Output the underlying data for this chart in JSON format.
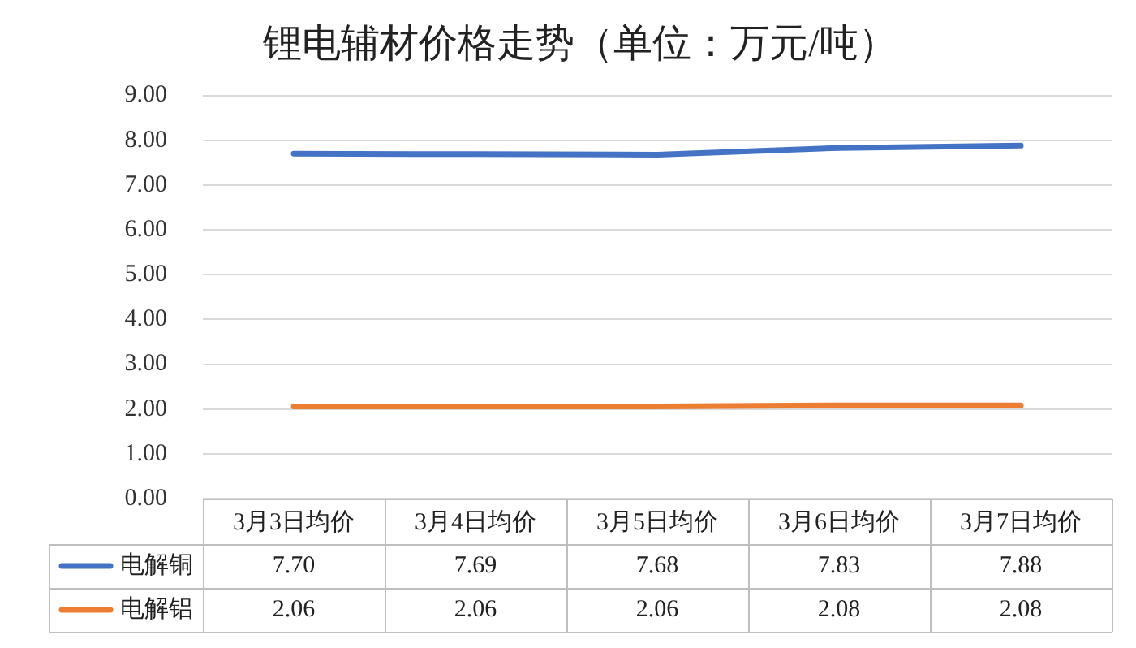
{
  "chart_data": {
    "type": "line",
    "title": "锂电辅材价格走势（单位：万元/吨）",
    "categories": [
      "3月3日均价",
      "3月4日均价",
      "3月5日均价",
      "3月6日均价",
      "3月7日均价"
    ],
    "series": [
      {
        "name": "电解铜",
        "color": "#4472c4",
        "values": [
          7.7,
          7.69,
          7.68,
          7.83,
          7.88
        ],
        "value_labels": [
          "7.70",
          "7.69",
          "7.68",
          "7.83",
          "7.88"
        ]
      },
      {
        "name": "电解铝",
        "color": "#ed7d31",
        "values": [
          2.06,
          2.06,
          2.06,
          2.08,
          2.08
        ],
        "value_labels": [
          "2.06",
          "2.06",
          "2.06",
          "2.08",
          "2.08"
        ]
      }
    ],
    "ylim": [
      0,
      9
    ],
    "yticks": [
      {
        "value": 0,
        "label": "0.00"
      },
      {
        "value": 1,
        "label": "1.00"
      },
      {
        "value": 2,
        "label": "2.00"
      },
      {
        "value": 3,
        "label": "3.00"
      },
      {
        "value": 4,
        "label": "4.00"
      },
      {
        "value": 5,
        "label": "5.00"
      },
      {
        "value": 6,
        "label": "6.00"
      },
      {
        "value": 7,
        "label": "7.00"
      },
      {
        "value": 8,
        "label": "8.00"
      },
      {
        "value": 9,
        "label": "9.00"
      }
    ],
    "grid": "y",
    "legend": "bottom",
    "marker": "none",
    "line_style": "solid"
  }
}
